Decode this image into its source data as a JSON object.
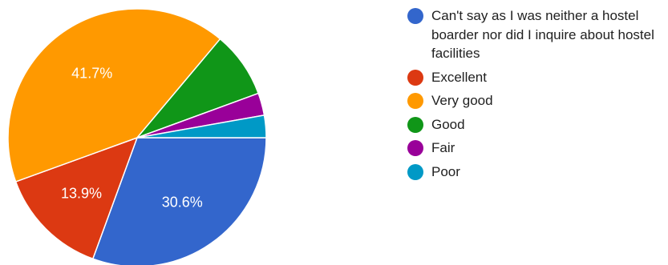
{
  "chart_data": {
    "type": "pie",
    "title": "",
    "legend_position": "right",
    "slices": [
      {
        "label": "Can't say as I was neither a hostel boarder nor did I inquire about hostel facilities",
        "value": 30.6,
        "color": "#3366cc",
        "data_label": "30.6%"
      },
      {
        "label": "Excellent",
        "value": 13.9,
        "color": "#dc3912",
        "data_label": "13.9%"
      },
      {
        "label": "Very good",
        "value": 41.7,
        "color": "#ff9900",
        "data_label": "41.7%"
      },
      {
        "label": "Good",
        "value": 8.3,
        "color": "#109618",
        "data_label": ""
      },
      {
        "label": "Fair",
        "value": 2.8,
        "color": "#990099",
        "data_label": ""
      },
      {
        "label": "Poor",
        "value": 2.8,
        "color": "#0099c6",
        "data_label": ""
      }
    ]
  }
}
